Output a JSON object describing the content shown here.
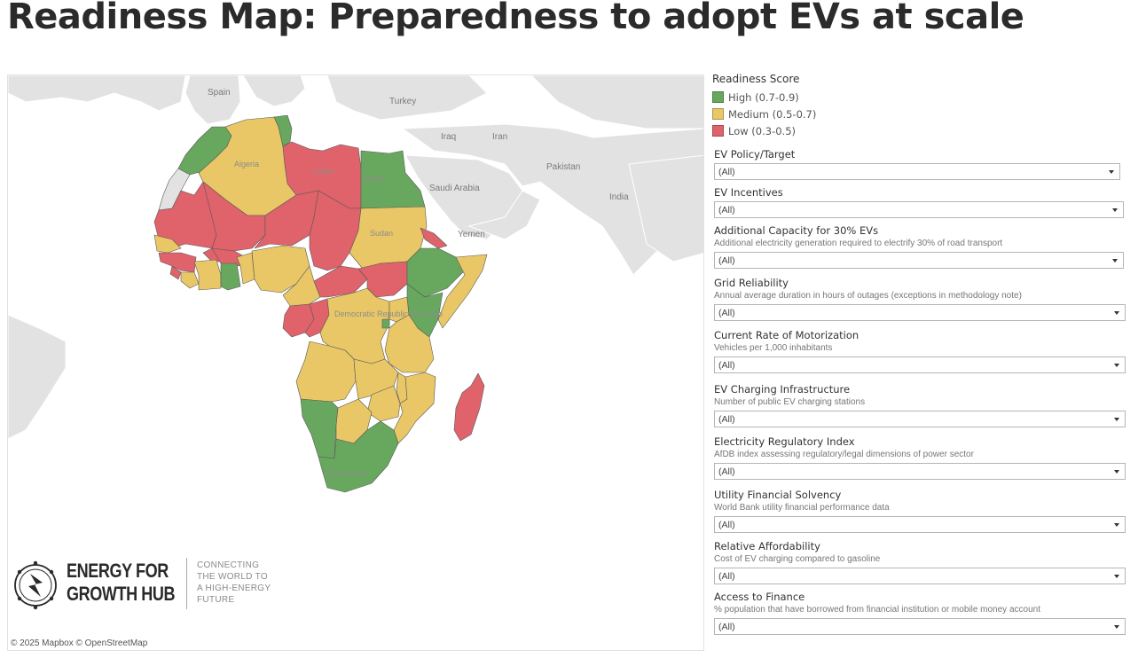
{
  "title": "Readiness Map: Preparedness to adopt EVs at scale",
  "colors": {
    "high": "#68a85e",
    "medium": "#e9c766",
    "low": "#e0626a",
    "land": "#e2e2e2",
    "water": "#ffffff"
  },
  "map": {
    "places": [
      "Spain",
      "Turkey",
      "Iraq",
      "Iran",
      "Pakistan",
      "India",
      "Saudi Arabia",
      "Yemen"
    ],
    "countries": [
      "Algeria",
      "Libya",
      "Egypt",
      "Sudan",
      "Democratic Republic of Congo",
      "South Africa"
    ],
    "attribution": "© 2025 Mapbox  © OpenStreetMap"
  },
  "logo": {
    "name": "ENERGY FOR\nGROWTH HUB",
    "tagline": "CONNECTING\nTHE WORLD TO\nA HIGH-ENERGY\nFUTURE",
    "icon": "energy-hub-logo-icon"
  },
  "legend": {
    "title": "Readiness Score",
    "items": [
      {
        "label": "High (0.7-0.9)",
        "color": "#68a85e"
      },
      {
        "label": "Medium (0.5-0.7)",
        "color": "#e9c766"
      },
      {
        "label": "Low (0.3-0.5)",
        "color": "#e0626a"
      }
    ]
  },
  "filters": [
    {
      "title": "EV Policy/Target",
      "desc": "",
      "value": "(All)"
    },
    {
      "title": "EV Incentives",
      "desc": "",
      "value": "(All)"
    },
    {
      "title": "Additional Capacity for 30% EVs",
      "desc": "Additional electricity generation required to electrify 30% of road transport",
      "value": "(All)"
    },
    {
      "title": "Grid Reliability",
      "desc": "Annual average duration in hours of outages (exceptions in methodology note)",
      "value": "(All)"
    },
    {
      "title": "Current Rate of Motorization",
      "desc": "Vehicles per 1,000 inhabitants",
      "value": "(All)"
    },
    {
      "title": "EV Charging Infrastructure",
      "desc": "Number of public EV charging stations",
      "value": "(All)"
    },
    {
      "title": "Electricity Regulatory Index",
      "desc": "AfDB index assessing regulatory/legal dimensions of power sector",
      "value": "(All)"
    },
    {
      "title": "Utility Financial Solvency",
      "desc": "World Bank utility financial performance data",
      "value": "(All)"
    },
    {
      "title": "Relative Affordability",
      "desc": "Cost of EV charging compared to gasoline",
      "value": "(All)"
    },
    {
      "title": "Access to Finance",
      "desc": "% population that have borrowed from financial institution or mobile money account",
      "value": "(All)"
    }
  ]
}
